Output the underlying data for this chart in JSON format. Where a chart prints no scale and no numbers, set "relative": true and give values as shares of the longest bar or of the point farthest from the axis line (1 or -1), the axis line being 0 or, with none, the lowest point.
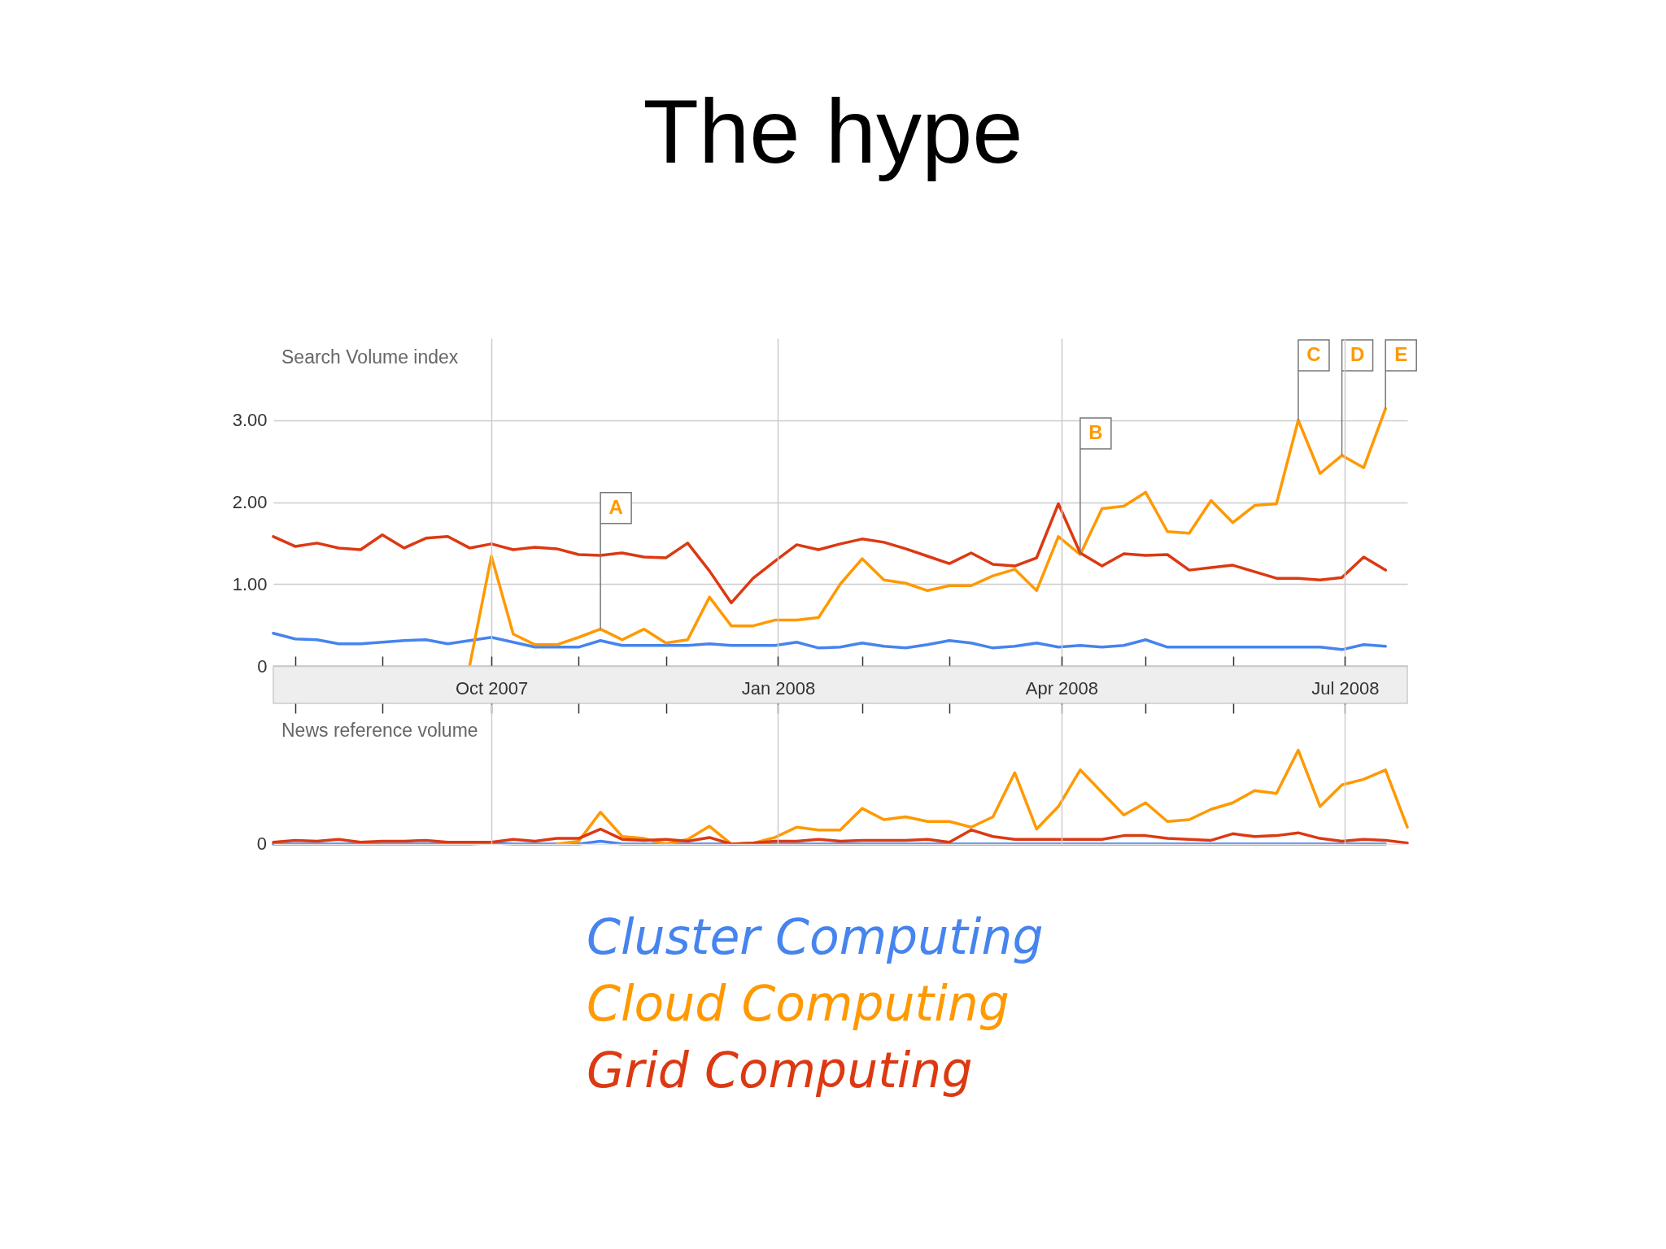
{
  "chart_data": [
    {
      "type": "line",
      "title": "The hype",
      "ylabel": "Search Volume index",
      "x": [
        "2007-07-23",
        "2007-07-30",
        "2007-08-06",
        "2007-08-13",
        "2007-08-20",
        "2007-08-27",
        "2007-09-03",
        "2007-09-10",
        "2007-09-17",
        "2007-09-24",
        "2007-10-01",
        "2007-10-08",
        "2007-10-15",
        "2007-10-22",
        "2007-10-29",
        "2007-11-05",
        "2007-11-12",
        "2007-11-19",
        "2007-11-26",
        "2007-12-03",
        "2007-12-10",
        "2007-12-17",
        "2007-12-24",
        "2007-12-31",
        "2008-01-07",
        "2008-01-14",
        "2008-01-21",
        "2008-01-28",
        "2008-02-04",
        "2008-02-11",
        "2008-02-18",
        "2008-02-25",
        "2008-03-03",
        "2008-03-10",
        "2008-03-17",
        "2008-03-24",
        "2008-03-31",
        "2008-04-07",
        "2008-04-14",
        "2008-04-21",
        "2008-04-28",
        "2008-05-05",
        "2008-05-12",
        "2008-05-19",
        "2008-05-26",
        "2008-06-02",
        "2008-06-09",
        "2008-06-16",
        "2008-06-23",
        "2008-06-30",
        "2008-07-07",
        "2008-07-14"
      ],
      "xlim": [
        "2007-07-23",
        "2008-07-21"
      ],
      "xticks": [
        {
          "value": "2007-07-30",
          "label": null
        },
        {
          "value": "2007-08-27",
          "label": null
        },
        {
          "value": "2007-10-01",
          "label": "Oct 2007"
        },
        {
          "value": "2007-10-29",
          "label": null
        },
        {
          "value": "2007-11-26",
          "label": null
        },
        {
          "value": "2008-01-01",
          "label": "Jan 2008"
        },
        {
          "value": "2008-01-28",
          "label": null
        },
        {
          "value": "2008-02-25",
          "label": null
        },
        {
          "value": "2008-04-01",
          "label": "Apr 2008"
        },
        {
          "value": "2008-04-28",
          "label": null
        },
        {
          "value": "2008-05-26",
          "label": null
        },
        {
          "value": "2008-07-01",
          "label": "Jul 2008"
        }
      ],
      "ylim": [
        0,
        4
      ],
      "yticks": [
        0,
        {
          "value": 1,
          "label": "1.00"
        },
        {
          "value": 2,
          "label": "2.00"
        },
        {
          "value": 3,
          "label": "3.00"
        }
      ],
      "grid": true,
      "series": [
        {
          "color": "#4684ee",
          "values": [
            0.4,
            0.33,
            0.32,
            0.27,
            0.27,
            0.29,
            0.31,
            0.32,
            0.27,
            0.31,
            0.35,
            0.29,
            0.23,
            0.23,
            0.23,
            0.31,
            0.25,
            0.25,
            0.25,
            0.25,
            0.27,
            0.25,
            0.25,
            0.25,
            0.29,
            0.22,
            0.23,
            0.28,
            0.24,
            0.22,
            0.26,
            0.31,
            0.28,
            0.22,
            0.24,
            0.28,
            0.23,
            0.25,
            0.23,
            0.25,
            0.32,
            0.23,
            0.23,
            0.23,
            0.23,
            0.23,
            0.23,
            0.23,
            0.23,
            0.2,
            0.26,
            0.24
          ]
        },
        {
          "color": "#ff9900",
          "values": [
            null,
            null,
            null,
            null,
            null,
            null,
            null,
            null,
            null,
            0,
            1.34,
            0.39,
            0.26,
            0.26,
            0.35,
            0.45,
            0.32,
            0.45,
            0.28,
            0.32,
            0.84,
            0.49,
            0.49,
            0.56,
            0.56,
            0.59,
            1.0,
            1.31,
            1.05,
            1.01,
            0.92,
            0.98,
            0.98,
            1.1,
            1.18,
            0.92,
            1.58,
            1.36,
            1.92,
            1.95,
            2.12,
            1.64,
            1.62,
            2.02,
            1.75,
            1.96,
            1.98,
            3.0,
            2.35,
            2.57,
            2.42,
            3.14
          ]
        },
        {
          "color": "#dc3912",
          "values": [
            1.58,
            1.46,
            1.5,
            1.44,
            1.42,
            1.6,
            1.44,
            1.56,
            1.58,
            1.44,
            1.49,
            1.42,
            1.45,
            1.43,
            1.36,
            1.35,
            1.38,
            1.33,
            1.32,
            1.5,
            1.16,
            0.77,
            1.07,
            1.28,
            1.48,
            1.42,
            1.49,
            1.55,
            1.51,
            1.43,
            1.34,
            1.25,
            1.38,
            1.24,
            1.22,
            1.32,
            1.98,
            1.38,
            1.22,
            1.37,
            1.35,
            1.36,
            1.17,
            1.2,
            1.23,
            1.15,
            1.07,
            1.07,
            1.05,
            1.08,
            1.33,
            1.17
          ]
        }
      ],
      "annotations": [
        {
          "text": "A",
          "x": "2007-11-05",
          "y": 0.45
        },
        {
          "text": "B",
          "x": "2008-04-07",
          "y": 1.36
        },
        {
          "text": "C",
          "x": "2008-06-16",
          "y": 3.0
        },
        {
          "text": "D",
          "x": "2008-06-30",
          "y": 2.57
        },
        {
          "text": "E",
          "x": "2008-07-14",
          "y": 3.14
        }
      ]
    },
    {
      "type": "line",
      "ylabel": "News reference volume",
      "relative": true,
      "tick_labels": false,
      "grid": "x",
      "x": [
        "2007-07-23",
        "2007-07-30",
        "2007-08-06",
        "2007-08-13",
        "2007-08-20",
        "2007-08-27",
        "2007-09-03",
        "2007-09-10",
        "2007-09-17",
        "2007-09-24",
        "2007-10-01",
        "2007-10-08",
        "2007-10-15",
        "2007-10-22",
        "2007-10-29",
        "2007-11-05",
        "2007-11-12",
        "2007-11-19",
        "2007-11-26",
        "2007-12-03",
        "2007-12-10",
        "2007-12-17",
        "2007-12-24",
        "2007-12-31",
        "2008-01-07",
        "2008-01-14",
        "2008-01-21",
        "2008-01-28",
        "2008-02-04",
        "2008-02-11",
        "2008-02-18",
        "2008-02-25",
        "2008-03-03",
        "2008-03-10",
        "2008-03-17",
        "2008-03-24",
        "2008-03-31",
        "2008-04-07",
        "2008-04-14",
        "2008-04-21",
        "2008-04-28",
        "2008-05-05",
        "2008-05-12",
        "2008-05-19",
        "2008-05-26",
        "2008-06-02",
        "2008-06-09",
        "2008-06-16",
        "2008-06-23",
        "2008-06-30",
        "2008-07-07",
        "2008-07-14",
        "2008-07-21"
      ],
      "xlim": [
        "2007-07-23",
        "2008-07-21"
      ],
      "xticks": [
        {
          "value": "2007-10-01",
          "label": null
        },
        {
          "value": "2008-01-01",
          "label": null
        },
        {
          "value": "2008-04-01",
          "label": null
        },
        {
          "value": "2008-07-01",
          "label": null
        }
      ],
      "series": [
        {
          "name": "Cluster Computing",
          "color": "#4684ee",
          "values": [
            0,
            0,
            0,
            0,
            0,
            0,
            0,
            0,
            0,
            0,
            0.01,
            0,
            0,
            0,
            0,
            0.03,
            0,
            0,
            0,
            0,
            0,
            0,
            0,
            0,
            0,
            0,
            0,
            0,
            0,
            0,
            0,
            0,
            0,
            0,
            0,
            0,
            0,
            0,
            0,
            0,
            0,
            0,
            0,
            0,
            0,
            0,
            0,
            0,
            0,
            0,
            0,
            0,
            null
          ]
        },
        {
          "name": "Cloud Computing",
          "color": "#ff9900",
          "values": [
            null,
            null,
            null,
            null,
            null,
            null,
            null,
            null,
            null,
            null,
            null,
            null,
            null,
            0,
            0.03,
            0.34,
            0.08,
            0.06,
            0,
            0.05,
            0.19,
            0,
            0.01,
            0.07,
            0.18,
            0.15,
            0.15,
            0.38,
            0.26,
            0.29,
            0.24,
            0.24,
            0.18,
            0.29,
            0.76,
            0.16,
            0.4,
            0.79,
            0.55,
            0.31,
            0.44,
            0.24,
            0.26,
            0.37,
            0.44,
            0.57,
            0.54,
            1.0,
            0.4,
            0.63,
            0.69,
            0.79,
            0.18
          ]
        },
        {
          "name": "Grid Computing",
          "color": "#dc3912",
          "values": [
            0.02,
            0.04,
            0.03,
            0.05,
            0.02,
            0.03,
            0.03,
            0.04,
            0.02,
            0.02,
            0.02,
            0.05,
            0.03,
            0.06,
            0.06,
            0.16,
            0.05,
            0.04,
            0.05,
            0.03,
            0.07,
            0,
            0.01,
            0.03,
            0.03,
            0.05,
            0.03,
            0.04,
            0.04,
            0.04,
            0.05,
            0.02,
            0.15,
            0.08,
            0.05,
            0.05,
            0.05,
            0.05,
            0.05,
            0.09,
            0.09,
            0.06,
            0.05,
            0.04,
            0.11,
            0.08,
            0.09,
            0.12,
            0.06,
            0.03,
            0.05,
            0.04,
            0.01
          ]
        }
      ],
      "annotations": [
        "0"
      ]
    }
  ]
}
